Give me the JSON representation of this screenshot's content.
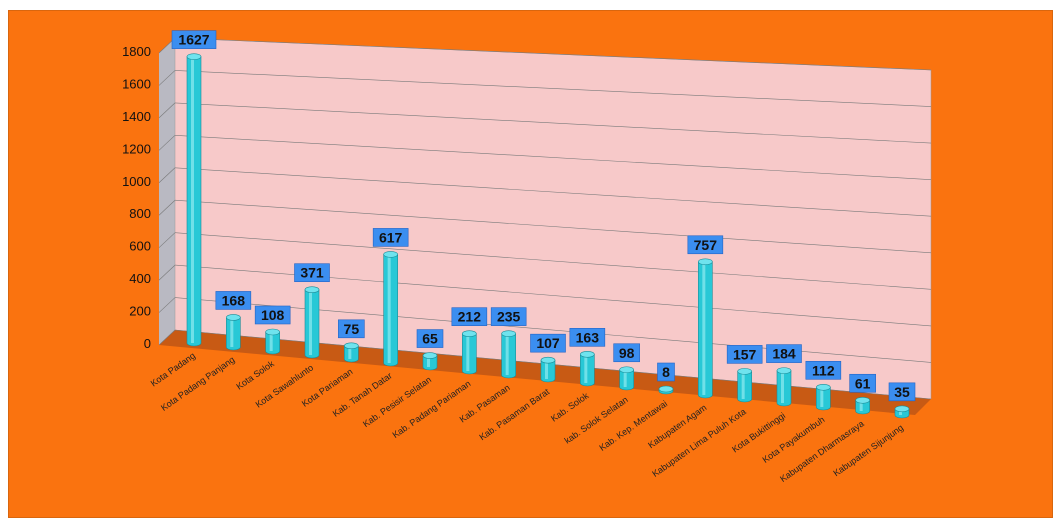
{
  "colors": {
    "background": "#fa730f",
    "wall": "#f7c9c9",
    "floor": "#c85a14",
    "bar": "#28c8d6",
    "label_box": "#3b8ef0"
  },
  "chart_data": {
    "type": "bar",
    "style": "3d-column",
    "title": "",
    "xlabel": "",
    "ylabel": "",
    "ylim": [
      0,
      1800
    ],
    "yticks": [
      0,
      200,
      400,
      600,
      800,
      1000,
      1200,
      1400,
      1600,
      1800
    ],
    "grid": true,
    "legend": "none",
    "categories": [
      "Kota Padang",
      "Kota Padang Panjang",
      "Kota Solok",
      "Kota Sawahlunto",
      "Kota Pariaman",
      "Kab. Tanah Datar",
      "Kab. Pesisir Selatan",
      "Kab. Padang Pariaman",
      "Kab. Pasaman",
      "Kab. Pasaman Barat",
      "Kab. Solok",
      "kab. Solok Selatan",
      "Kab. Kep. Mentawai",
      "Kabupaten Agam",
      "Kabupaten Lima Puluh Kota",
      "Kota Bukittinggi",
      "Kota Payakumbuh",
      "Kabupaten Dharmasraya",
      "Kabupaten Sijunjung"
    ],
    "values": [
      1627,
      168,
      108,
      371,
      75,
      617,
      65,
      212,
      235,
      107,
      163,
      98,
      8,
      757,
      157,
      184,
      112,
      61,
      35
    ]
  }
}
